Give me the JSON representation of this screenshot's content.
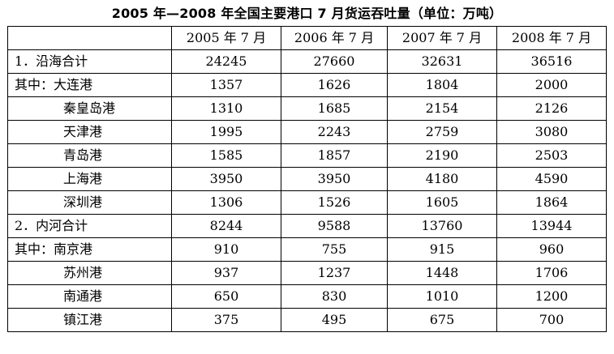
{
  "title": "2005 年—2008 年全国主要港口 7 月货运吞吐量（单位：万吨）",
  "table": {
    "headers": [
      "",
      "2005 年 7 月",
      "2006 年 7 月",
      "2007 年 7 月",
      "2008 年 7 月"
    ],
    "rows": [
      {
        "prefix": "",
        "label": "1．沿海合计",
        "values": [
          "24245",
          "27660",
          "32631",
          "36516"
        ]
      },
      {
        "prefix": "其中：",
        "label": "大连港",
        "values": [
          "1357",
          "1626",
          "1804",
          "2000"
        ]
      },
      {
        "prefix": "",
        "label": "秦皇岛港",
        "values": [
          "1310",
          "1685",
          "2154",
          "2126"
        ]
      },
      {
        "prefix": "",
        "label": "天津港",
        "values": [
          "1995",
          "2243",
          "2759",
          "3080"
        ]
      },
      {
        "prefix": "",
        "label": "青岛港",
        "values": [
          "1585",
          "1857",
          "2190",
          "2503"
        ]
      },
      {
        "prefix": "",
        "label": "上海港",
        "values": [
          "3950",
          "3950",
          "4180",
          "4590"
        ]
      },
      {
        "prefix": "",
        "label": "深圳港",
        "values": [
          "1306",
          "1526",
          "1605",
          "1864"
        ]
      },
      {
        "prefix": "",
        "label": "2．内河合计",
        "values": [
          "8244",
          "9588",
          "13760",
          "13944"
        ]
      },
      {
        "prefix": "其中：",
        "label": "南京港",
        "values": [
          "910",
          "755",
          "915",
          "960"
        ]
      },
      {
        "prefix": "",
        "label": "苏州港",
        "values": [
          "937",
          "1237",
          "1448",
          "1706"
        ]
      },
      {
        "prefix": "",
        "label": "南通港",
        "values": [
          "650",
          "830",
          "1010",
          "1200"
        ]
      },
      {
        "prefix": "",
        "label": "镇江港",
        "values": [
          "375",
          "495",
          "675",
          "700"
        ]
      }
    ]
  }
}
